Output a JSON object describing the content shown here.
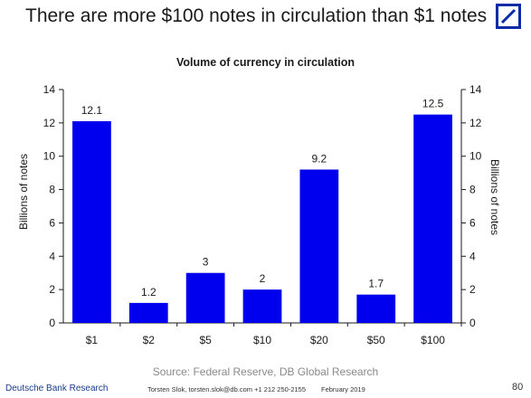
{
  "slide": {
    "title": "There are more $100 notes in circulation than $1 notes",
    "source": "Source: Federal Reserve, DB Global Research",
    "footer_left": "Deutsche Bank Research",
    "footer_contact": "Torsten Slok, torsten.slok@db.com  +1 212 250-2155",
    "footer_date": "February 2019",
    "page_number": "80",
    "logo_icon": "deutsche-bank-logo",
    "accent_color": "#0a2aa8"
  },
  "chart_data": {
    "type": "bar",
    "title": "Volume of currency in circulation",
    "categories": [
      "$1",
      "$2",
      "$5",
      "$10",
      "$20",
      "$50",
      "$100"
    ],
    "values": [
      12.1,
      1.2,
      3,
      2,
      9.2,
      1.7,
      12.5
    ],
    "data_labels": [
      "12.1",
      "1.2",
      "3",
      "2",
      "9.2",
      "1.7",
      "12.5"
    ],
    "ylabel": "Billions of notes",
    "ylabel_right": "Billions of notes",
    "ylim": [
      0,
      14
    ],
    "yticks": [
      0,
      2,
      4,
      6,
      8,
      10,
      12,
      14
    ],
    "bar_color": "#0000ee",
    "grid": false,
    "legend": "none"
  }
}
